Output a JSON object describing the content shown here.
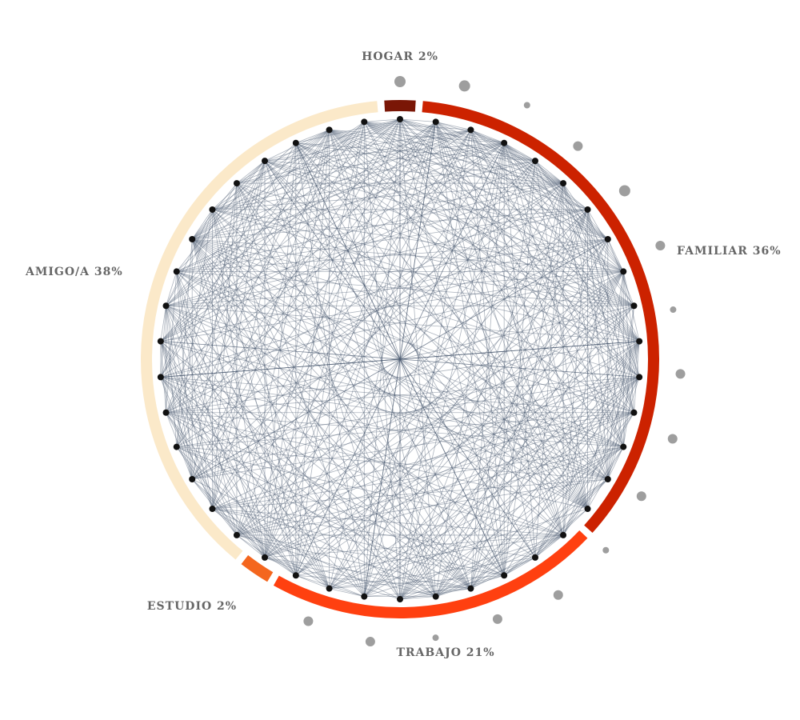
{
  "categories": [
    {
      "key": "hogar",
      "label": "HOGAR 2%",
      "color": "#7a1606",
      "nodes": 1
    },
    {
      "key": "familiar",
      "label": "FAMILIAR 36%",
      "color": "#cc2200",
      "nodes": 15
    },
    {
      "key": "trabajo",
      "label": "TRABAJO 21%",
      "color": "#ff4010",
      "nodes": 9
    },
    {
      "key": "estudio",
      "label": "ESTUDIO 2%",
      "color": "#f4661e",
      "nodes": 1
    },
    {
      "key": "amigo",
      "label": "AMIGO/A 38%",
      "color": "#fbe9c9",
      "nodes": 16
    }
  ],
  "styles": {
    "edge_color": "#4b5a70",
    "node_color": "#111111",
    "outer_dot_color": "#9e9e9e",
    "label_color": "#666666"
  },
  "edge_density": 0.55,
  "outer_dot_sizes": [
    7,
    7,
    4,
    6,
    7,
    6,
    4,
    6,
    6,
    6,
    4,
    6,
    6,
    4,
    6,
    6
  ]
}
